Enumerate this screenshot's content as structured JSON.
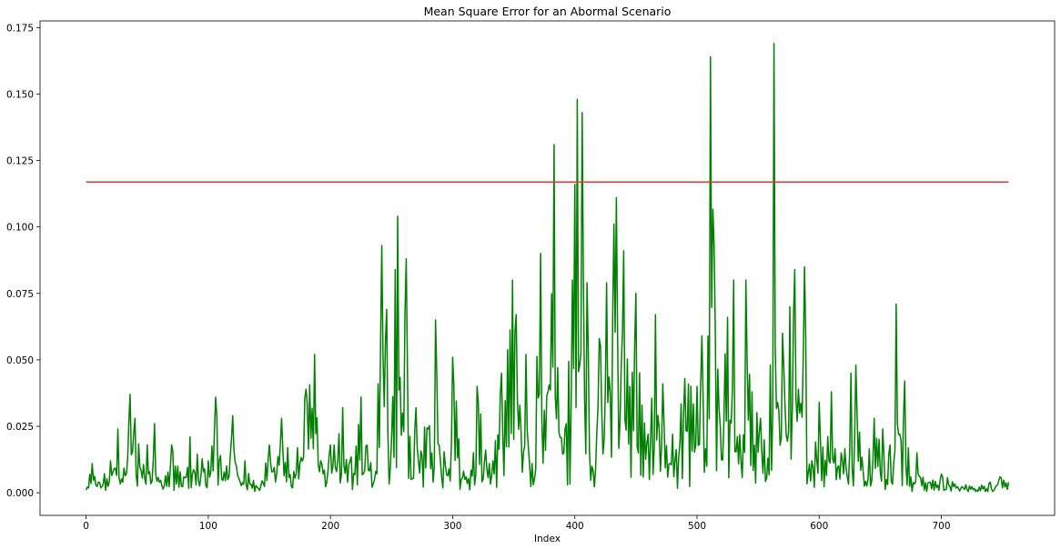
{
  "chart_data": {
    "type": "line",
    "title": "Mean Square Error for an Abormal Scenario",
    "xlabel": "Index",
    "ylabel": "",
    "xlim": [
      -37.7,
      792.7
    ],
    "ylim": [
      -0.0085,
      0.1775
    ],
    "xticks": [
      0,
      100,
      200,
      300,
      400,
      500,
      600,
      700
    ],
    "yticks": [
      0.0,
      0.025,
      0.05,
      0.075,
      0.1,
      0.125,
      0.15,
      0.175
    ],
    "ytick_labels": [
      "0.000",
      "0.025",
      "0.050",
      "0.075",
      "0.100",
      "0.125",
      "0.150",
      "0.175"
    ],
    "grid": false,
    "legend": "none",
    "series": [
      {
        "color": "#008000",
        "keypoints": [
          [
            0,
            0.001
          ],
          [
            5,
            0.011
          ],
          [
            10,
            0.004
          ],
          [
            20,
            0.012
          ],
          [
            26,
            0.024
          ],
          [
            30,
            0.004
          ],
          [
            36,
            0.037
          ],
          [
            40,
            0.028
          ],
          [
            50,
            0.018
          ],
          [
            56,
            0.026
          ],
          [
            60,
            0.004
          ],
          [
            70,
            0.018
          ],
          [
            80,
            0.006
          ],
          [
            85,
            0.021
          ],
          [
            100,
            0.012
          ],
          [
            106,
            0.036
          ],
          [
            110,
            0.014
          ],
          [
            120,
            0.029
          ],
          [
            130,
            0.012
          ],
          [
            140,
            0.002
          ],
          [
            150,
            0.018
          ],
          [
            160,
            0.028
          ],
          [
            170,
            0.008
          ],
          [
            180,
            0.039
          ],
          [
            187,
            0.052
          ],
          [
            192,
            0.012
          ],
          [
            200,
            0.018
          ],
          [
            210,
            0.032
          ],
          [
            216,
            0.012
          ],
          [
            225,
            0.036
          ],
          [
            230,
            0.018
          ],
          [
            237,
            0.008
          ],
          [
            242,
            0.093
          ],
          [
            246,
            0.069
          ],
          [
            250,
            0.02
          ],
          [
            253,
            0.084
          ],
          [
            255,
            0.104
          ],
          [
            259,
            0.03
          ],
          [
            262,
            0.088
          ],
          [
            266,
            0.005
          ],
          [
            270,
            0.032
          ],
          [
            280,
            0.024
          ],
          [
            286,
            0.065
          ],
          [
            290,
            0.012
          ],
          [
            300,
            0.051
          ],
          [
            310,
            0.005
          ],
          [
            320,
            0.04
          ],
          [
            330,
            0.011
          ],
          [
            340,
            0.045
          ],
          [
            349,
            0.08
          ],
          [
            352,
            0.067
          ],
          [
            356,
            0.023
          ],
          [
            360,
            0.052
          ],
          [
            365,
            0.011
          ],
          [
            372,
            0.09
          ],
          [
            378,
            0.038
          ],
          [
            383,
            0.131
          ],
          [
            386,
            0.047
          ],
          [
            392,
            0.024
          ],
          [
            398,
            0.08
          ],
          [
            400,
            0.116
          ],
          [
            402,
            0.148
          ],
          [
            404,
            0.048
          ],
          [
            406,
            0.143
          ],
          [
            410,
            0.079
          ],
          [
            414,
            0.01
          ],
          [
            420,
            0.058
          ],
          [
            426,
            0.079
          ],
          [
            432,
            0.101
          ],
          [
            434,
            0.111
          ],
          [
            438,
            0.048
          ],
          [
            440,
            0.091
          ],
          [
            445,
            0.04
          ],
          [
            450,
            0.075
          ],
          [
            455,
            0.033
          ],
          [
            460,
            0.022
          ],
          [
            466,
            0.067
          ],
          [
            472,
            0.041
          ],
          [
            480,
            0.022
          ],
          [
            490,
            0.043
          ],
          [
            500,
            0.04
          ],
          [
            504,
            0.059
          ],
          [
            508,
            0.01
          ],
          [
            511,
            0.164
          ],
          [
            514,
            0.093
          ],
          [
            518,
            0.032
          ],
          [
            525,
            0.066
          ],
          [
            530,
            0.08
          ],
          [
            536,
            0.012
          ],
          [
            540,
            0.08
          ],
          [
            545,
            0.038
          ],
          [
            552,
            0.028
          ],
          [
            558,
            0.013
          ],
          [
            560,
            0.048
          ],
          [
            562,
            0.03
          ],
          [
            563,
            0.169
          ],
          [
            566,
            0.034
          ],
          [
            570,
            0.06
          ],
          [
            576,
            0.07
          ],
          [
            580,
            0.084
          ],
          [
            584,
            0.03
          ],
          [
            588,
            0.085
          ],
          [
            594,
            0.012
          ],
          [
            600,
            0.034
          ],
          [
            610,
            0.038
          ],
          [
            618,
            0.015
          ],
          [
            626,
            0.045
          ],
          [
            630,
            0.048
          ],
          [
            636,
            0.008
          ],
          [
            645,
            0.028
          ],
          [
            652,
            0.024
          ],
          [
            658,
            0.018
          ],
          [
            663,
            0.071
          ],
          [
            666,
            0.022
          ],
          [
            670,
            0.042
          ],
          [
            675,
            0.006
          ],
          [
            680,
            0.015
          ],
          [
            690,
            0.004
          ],
          [
            700,
            0.007
          ],
          [
            720,
            0.003
          ],
          [
            740,
            0.004
          ],
          [
            748,
            0.006
          ],
          [
            755,
            0.004
          ]
        ],
        "length": 756
      },
      {
        "color": "#e8372c",
        "x": [
          0,
          755
        ],
        "y": [
          0.1169,
          0.1169
        ]
      }
    ]
  }
}
